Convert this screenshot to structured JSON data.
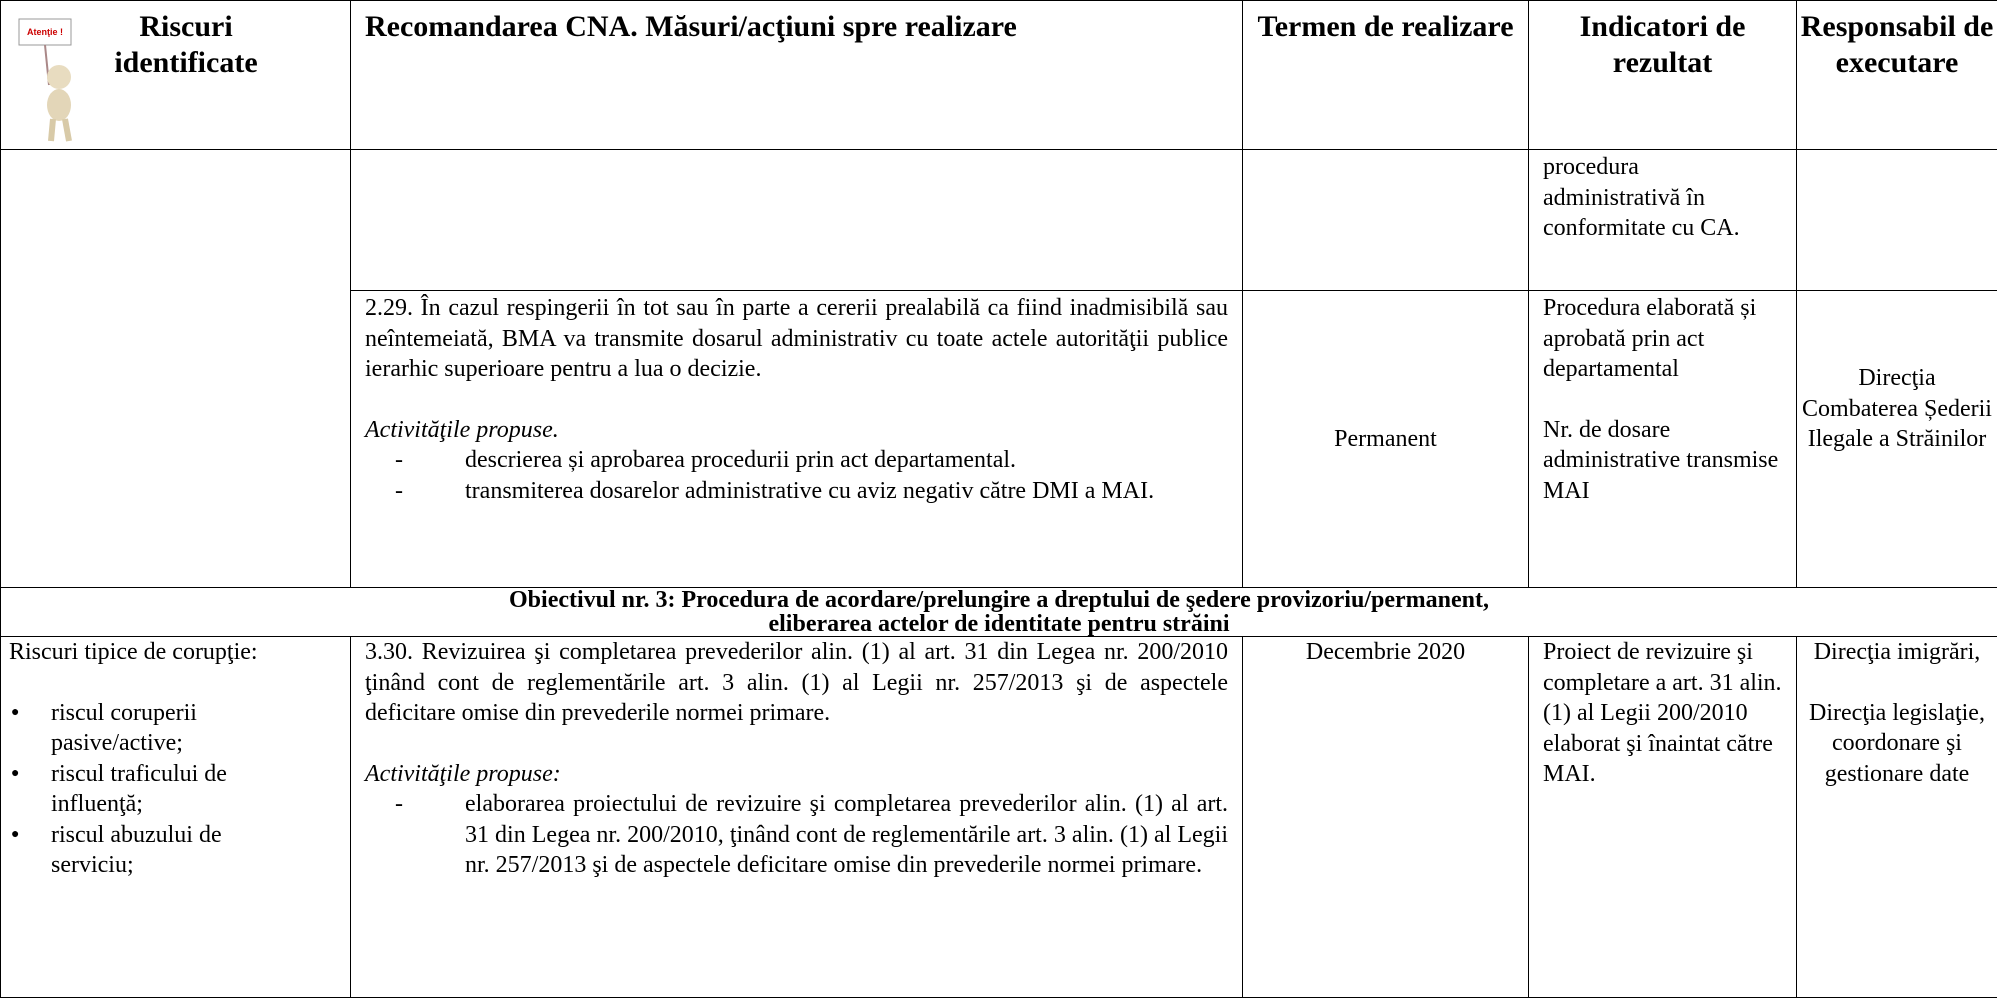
{
  "header": {
    "icon_text": "Atenţie !",
    "columns": [
      "Riscuri identificate",
      "Recomandarea CNA. Măsuri/acţiuni spre realizare",
      "Termen de realizare",
      "Indicatori de rezultat",
      "Responsabil de executare"
    ]
  },
  "rows": [
    {
      "indicators": [
        "procedura administrativă în conformitate cu CA."
      ]
    },
    {
      "recommendation": "2.29. În cazul respingerii în tot sau în parte a cererii prealabilă ca fiind inadmisibilă sau neîntemeiată, BMA va transmite dosarul administrativ cu toate actele autorităţii publice ierarhic superioare pentru a lua o decizie.",
      "activities_label": "Activităţile propuse.",
      "activities": [
        "descrierea și aprobarea procedurii prin act departamental.",
        "transmiterea dosarelor administrative cu aviz negativ către DMI a MAI."
      ],
      "term": "Permanent",
      "indicators": [
        "Procedura elaborată și aprobată prin act departamental",
        "Nr. de dosare administrative transmise MAI"
      ],
      "responsible": [
        "Direcţia Combaterea Șederii Ilegale a Străinilor"
      ]
    }
  ],
  "objective": [
    "Obiectivul nr. 3: Procedura de acordare/prelungire a dreptului de şedere provizoriu/permanent,",
    "eliberarea actelor de identitate pentru străini"
  ],
  "rows_after": [
    {
      "risks_intro": "Riscuri tipice de corupţie:",
      "risks": [
        "riscul coruperii pasive/active;",
        "riscul traficului de influenţă;",
        "riscul abuzului de serviciu;"
      ],
      "recommendation": "3.30.  Revizuirea şi completarea prevederilor alin. (1) al art. 31 din Legea nr. 200/2010 ţinând cont de reglementările art. 3 alin. (1) al Legii nr. 257/2013 şi de aspectele deficitare omise din prevederile normei primare.",
      "activities_label": "Activităţile propuse:",
      "activities": [
        "elaborarea proiectului de revizuire şi completarea prevederilor alin. (1) al art. 31 din Legea nr. 200/2010, ţinând cont de reglementările art. 3 alin. (1) al Legii nr. 257/2013 şi de aspectele deficitare omise din prevederile normei primare."
      ],
      "term": "Decembrie 2020",
      "indicators": [
        "Proiect de revizuire şi completare a art. 31 alin.(1) al Legii 200/2010 elaborat şi înaintat către MAI."
      ],
      "responsible": [
        "Direcţia imigrări,",
        "Direcţia legislaţie, coordonare şi gestionare date"
      ]
    }
  ]
}
